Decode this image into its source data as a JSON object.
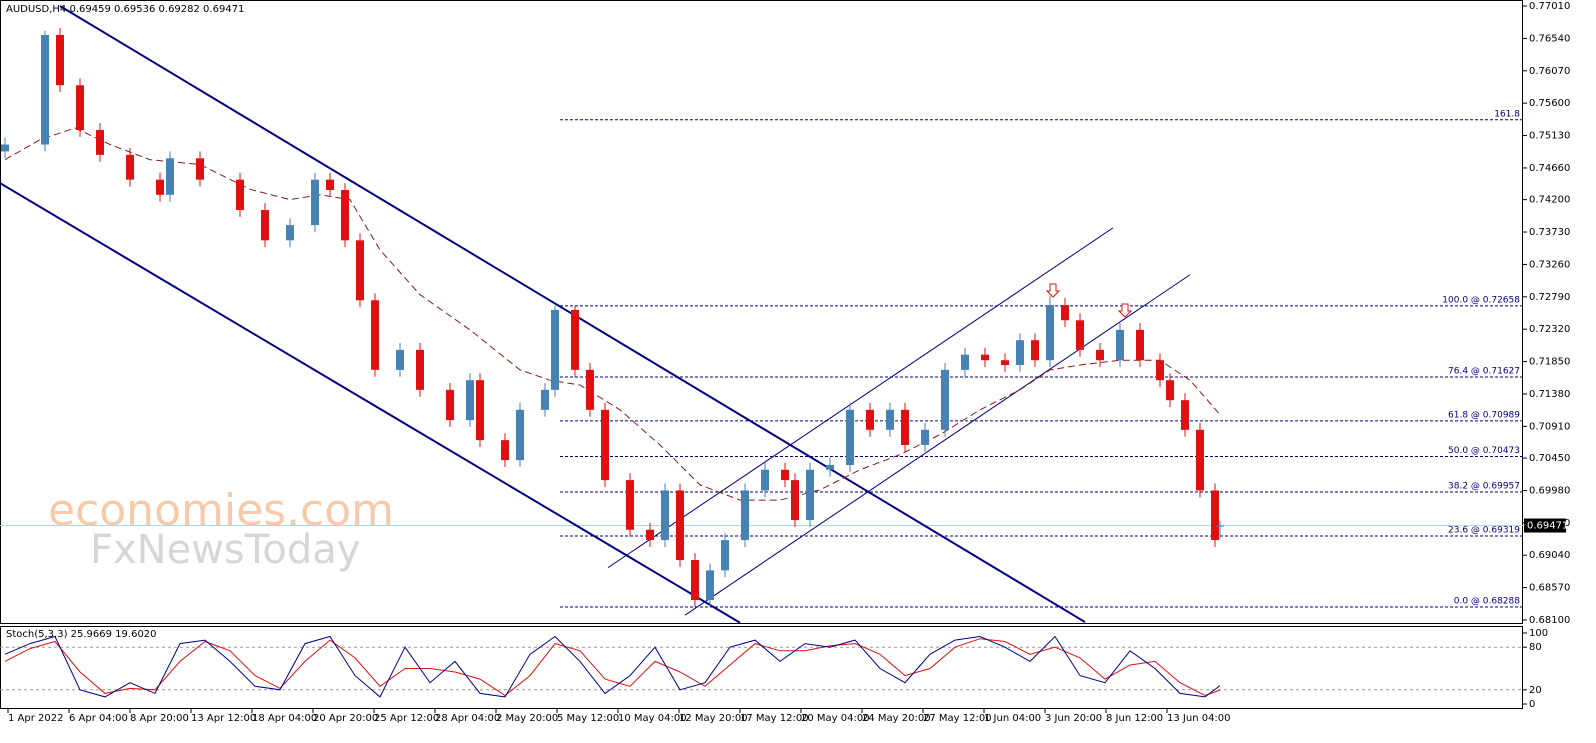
{
  "chart_data": [
    {
      "type": "candlestick",
      "title": "AUDUSD,H4  0.69459 0.69536 0.69282 0.69471",
      "watermark": [
        "economies.com",
        "FxNewsToday"
      ],
      "up_color": "#4682b4",
      "down_color": "#e01010",
      "x": [
        0,
        8,
        11,
        15,
        19,
        25,
        31,
        33,
        39,
        47,
        52,
        57,
        62,
        65,
        68,
        71,
        74,
        79,
        83,
        89,
        93,
        95,
        100,
        103,
        108,
        110,
        114,
        117,
        120,
        125,
        129,
        132,
        135,
        138,
        141,
        144,
        148,
        152,
        156,
        158,
        161,
        165,
        169,
        173,
        177,
        180,
        184,
        188,
        192,
        196,
        200,
        203,
        206,
        209,
        212,
        215,
        219,
        223,
        227,
        231,
        233,
        236,
        239,
        242,
        243
      ],
      "open": [
        0.749,
        0.75,
        0.7659,
        0.7586,
        0.7521,
        0.7485,
        0.7449,
        0.7427,
        0.748,
        0.7449,
        0.7405,
        0.7361,
        0.7383,
        0.7449,
        0.7434,
        0.7361,
        0.7274,
        0.7173,
        0.7202,
        0.7144,
        0.71,
        0.7158,
        0.7071,
        0.7042,
        0.7115,
        0.7144,
        0.726,
        0.7173,
        0.7115,
        0.7013,
        0.6941,
        0.6926,
        0.6998,
        0.6897,
        0.6839,
        0.6882,
        0.6926,
        0.6998,
        0.7028,
        0.7013,
        0.6955,
        0.7028,
        0.7035,
        0.7115,
        0.7086,
        0.7115,
        0.7064,
        0.7086,
        0.7173,
        0.7195,
        0.7187,
        0.718,
        0.7216,
        0.7187,
        0.7267,
        0.7245,
        0.7202,
        0.7187,
        0.7231,
        0.7187,
        0.7158,
        0.7129,
        0.7086,
        0.6998,
        0.69459
      ],
      "high": [
        0.751,
        0.7665,
        0.7669,
        0.7596,
        0.7531,
        0.7495,
        0.7459,
        0.749,
        0.749,
        0.7459,
        0.7415,
        0.7393,
        0.7459,
        0.7459,
        0.7444,
        0.7371,
        0.7284,
        0.7212,
        0.7212,
        0.7154,
        0.7168,
        0.7168,
        0.7081,
        0.7125,
        0.7154,
        0.7266,
        0.7266,
        0.7183,
        0.7125,
        0.7023,
        0.6951,
        0.7008,
        0.7008,
        0.6907,
        0.6892,
        0.6936,
        0.7008,
        0.7038,
        0.7038,
        0.7023,
        0.7038,
        0.7045,
        0.7125,
        0.7125,
        0.7125,
        0.7125,
        0.7096,
        0.7183,
        0.7205,
        0.7205,
        0.7197,
        0.7226,
        0.7226,
        0.728,
        0.7277,
        0.7255,
        0.7212,
        0.7241,
        0.7241,
        0.7197,
        0.7168,
        0.7139,
        0.7096,
        0.7008,
        0.69536
      ],
      "low": [
        0.748,
        0.749,
        0.7576,
        0.7511,
        0.7475,
        0.7439,
        0.7417,
        0.7417,
        0.7439,
        0.7395,
        0.7351,
        0.7351,
        0.7373,
        0.7424,
        0.7351,
        0.7264,
        0.7163,
        0.7163,
        0.7134,
        0.709,
        0.709,
        0.7061,
        0.7032,
        0.7032,
        0.7105,
        0.7134,
        0.7163,
        0.7105,
        0.7003,
        0.6931,
        0.6916,
        0.6916,
        0.6887,
        0.6829,
        0.6829,
        0.6872,
        0.6916,
        0.6988,
        0.7003,
        0.6945,
        0.6945,
        0.7018,
        0.7025,
        0.7076,
        0.7076,
        0.7054,
        0.7054,
        0.7076,
        0.7163,
        0.7177,
        0.717,
        0.717,
        0.7177,
        0.7177,
        0.7235,
        0.7192,
        0.7177,
        0.7177,
        0.7177,
        0.7148,
        0.7119,
        0.7076,
        0.6988,
        0.6916,
        0.69282
      ],
      "close": [
        0.75,
        0.7659,
        0.7586,
        0.7521,
        0.7485,
        0.7449,
        0.7427,
        0.748,
        0.7449,
        0.7405,
        0.7361,
        0.7383,
        0.7449,
        0.7434,
        0.7361,
        0.7274,
        0.7173,
        0.7202,
        0.7144,
        0.71,
        0.7158,
        0.7071,
        0.7042,
        0.7115,
        0.7144,
        0.726,
        0.7173,
        0.7115,
        0.7013,
        0.6941,
        0.6926,
        0.6998,
        0.6897,
        0.6839,
        0.6882,
        0.6926,
        0.6998,
        0.7028,
        0.7013,
        0.6955,
        0.7028,
        0.7035,
        0.7115,
        0.7086,
        0.7115,
        0.7064,
        0.7086,
        0.7173,
        0.7195,
        0.7187,
        0.718,
        0.7216,
        0.7187,
        0.7267,
        0.7245,
        0.7202,
        0.7187,
        0.7231,
        0.7187,
        0.7158,
        0.7129,
        0.7086,
        0.6998,
        0.6926,
        0.69471
      ],
      "ma": {
        "color": "#8b1a1a",
        "x": [
          0,
          7,
          14,
          21,
          29,
          39,
          49,
          57,
          63,
          69,
          75,
          83,
          93,
          103,
          109,
          115,
          123,
          131,
          139,
          147,
          155,
          163,
          171,
          179,
          187,
          195,
          203,
          209,
          215,
          223,
          231,
          237,
          243
        ],
        "values": [
          0.7478,
          0.7507,
          0.7524,
          0.75,
          0.7478,
          0.7471,
          0.7435,
          0.742,
          0.7427,
          0.742,
          0.7347,
          0.7282,
          0.7231,
          0.7173,
          0.7158,
          0.7151,
          0.7115,
          0.7064,
          0.7006,
          0.6984,
          0.6984,
          0.6999,
          0.7028,
          0.705,
          0.7079,
          0.7115,
          0.7144,
          0.7173,
          0.718,
          0.7187,
          0.7187,
          0.7158,
          0.7108
        ]
      },
      "trendlines": [
        {
          "x": [
            11,
            216
          ],
          "y": [
            0.7701,
            0.6807
          ],
          "color": "#000080",
          "width": 2
        },
        {
          "x": [
            -1,
            147
          ],
          "y": [
            0.7444,
            0.6806
          ],
          "color": "#000080",
          "width": 2
        },
        {
          "x": [
            120.6,
            221.6
          ],
          "y": [
            0.6886,
            0.7379
          ],
          "color": "#000080",
          "width": 1
        },
        {
          "x": [
            136,
            237
          ],
          "y": [
            0.6817,
            0.7311
          ],
          "color": "#000080",
          "width": 1
        }
      ],
      "fib": {
        "start_x": 111,
        "color": "#000080",
        "levels": [
          {
            "label": "161.8",
            "value": 0.75359
          },
          {
            "label": "100.0 @ 0.72658",
            "value": 0.72658
          },
          {
            "label": "76.4 @ 0.71627",
            "value": 0.71627
          },
          {
            "label": "61.8 @ 0.70989",
            "value": 0.70989
          },
          {
            "label": "50.0 @ 0.70473",
            "value": 0.70473
          },
          {
            "label": "38.2 @ 0.69957",
            "value": 0.69957
          },
          {
            "label": "23.6 @ 0.69319",
            "value": 0.69319
          },
          {
            "label": "0.0 @ 0.68288",
            "value": 0.68288
          }
        ]
      },
      "last": {
        "value": 0.69471,
        "label": "0.69471"
      },
      "xlim": [
        -1,
        303.6
      ],
      "ylim": [
        0.681,
        0.7701
      ],
      "yticks": [
        {
          "value": 0.7701,
          "label": "0.77010"
        },
        {
          "value": 0.7654,
          "label": "0.76540"
        },
        {
          "value": 0.7607,
          "label": "0.76070"
        },
        {
          "value": 0.756,
          "label": "0.75600"
        },
        {
          "value": 0.7513,
          "label": "0.75130"
        },
        {
          "value": 0.7466,
          "label": "0.74660"
        },
        {
          "value": 0.742,
          "label": "0.74200"
        },
        {
          "value": 0.7373,
          "label": "0.73730"
        },
        {
          "value": 0.7326,
          "label": "0.73260"
        },
        {
          "value": 0.7279,
          "label": "0.72790"
        },
        {
          "value": 0.7232,
          "label": "0.72320"
        },
        {
          "value": 0.7185,
          "label": "0.71850"
        },
        {
          "value": 0.7138,
          "label": "0.71380"
        },
        {
          "value": 0.7091,
          "label": "0.70910"
        },
        {
          "value": 0.7045,
          "label": "0.70450"
        },
        {
          "value": 0.6998,
          "label": "0.69980"
        },
        {
          "value": 0.6951,
          "label": "0.69510"
        },
        {
          "value": 0.6904,
          "label": "0.69040"
        },
        {
          "value": 0.6857,
          "label": "0.68570"
        },
        {
          "value": 0.681,
          "label": "0.68100"
        }
      ],
      "xticks": [
        {
          "value": 0,
          "label": "1 Apr 2022"
        },
        {
          "value": 12.2,
          "label": "6 Apr 04:00"
        },
        {
          "value": 24.4,
          "label": "8 Apr 20:00"
        },
        {
          "value": 36.6,
          "label": "13 Apr 12:00"
        },
        {
          "value": 48.8,
          "label": "18 Apr 04:00"
        },
        {
          "value": 61,
          "label": "20 Apr 20:00"
        },
        {
          "value": 73.2,
          "label": "25 Apr 12:00"
        },
        {
          "value": 85.4,
          "label": "28 Apr 04:00"
        },
        {
          "value": 97.6,
          "label": "2 May 20:00"
        },
        {
          "value": 109.8,
          "label": "5 May 12:00"
        },
        {
          "value": 122,
          "label": "10 May 04:00"
        },
        {
          "value": 134.2,
          "label": "12 May 20:00"
        },
        {
          "value": 146.4,
          "label": "17 May 12:00"
        },
        {
          "value": 158.6,
          "label": "20 May 04:00"
        },
        {
          "value": 170.8,
          "label": "24 May 20:00"
        },
        {
          "value": 183,
          "label": "27 May 12:00"
        },
        {
          "value": 195.2,
          "label": "1 Jun 04:00"
        },
        {
          "value": 207.4,
          "label": "3 Jun 20:00"
        },
        {
          "value": 219.6,
          "label": "8 Jun 12:00"
        },
        {
          "value": 231.8,
          "label": "13 Jun 04:00"
        }
      ]
    },
    {
      "type": "stochastic",
      "title": "Stoch(5,3,3) 25.9669 19.6020",
      "x": [
        0,
        5,
        10,
        15,
        20,
        25,
        30,
        35,
        40,
        45,
        50,
        55,
        60,
        65,
        70,
        75,
        80,
        85,
        90,
        95,
        100,
        105,
        110,
        115,
        120,
        125,
        130,
        135,
        140,
        145,
        150,
        155,
        160,
        165,
        170,
        175,
        180,
        185,
        190,
        195,
        200,
        205,
        210,
        215,
        220,
        225,
        230,
        235,
        240,
        243
      ],
      "series": [
        {
          "color": "#00008b",
          "values": [
            70,
            85,
            95,
            20,
            10,
            30,
            15,
            85,
            90,
            60,
            25,
            20,
            85,
            95,
            40,
            10,
            80,
            30,
            60,
            15,
            10,
            70,
            95,
            60,
            15,
            40,
            80,
            20,
            30,
            80,
            90,
            60,
            85,
            80,
            90,
            50,
            30,
            70,
            90,
            95,
            80,
            60,
            95,
            40,
            30,
            75,
            50,
            15,
            10,
            25.9669
          ]
        },
        {
          "color": "#e01010",
          "values": [
            60,
            78,
            88,
            45,
            15,
            22,
            20,
            60,
            88,
            75,
            40,
            22,
            60,
            90,
            65,
            25,
            50,
            50,
            45,
            35,
            12,
            40,
            85,
            75,
            35,
            25,
            60,
            45,
            25,
            55,
            85,
            75,
            75,
            82,
            85,
            70,
            40,
            50,
            80,
            92,
            88,
            70,
            80,
            65,
            35,
            55,
            60,
            30,
            12,
            19.602
          ]
        }
      ],
      "ylim": [
        0,
        100
      ],
      "yticks": [
        100,
        80,
        20,
        0
      ],
      "levels": [
        80,
        20
      ]
    }
  ]
}
